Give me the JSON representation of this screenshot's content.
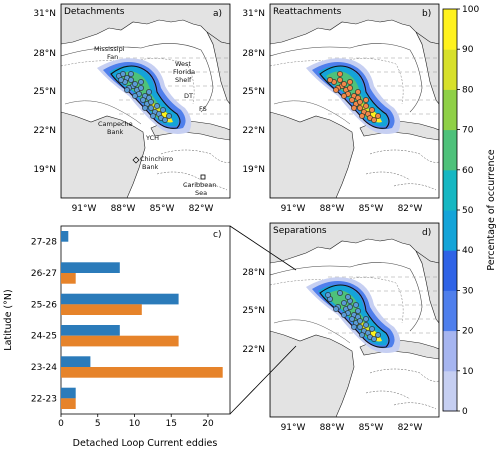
{
  "panels": {
    "a": {
      "title": "Detachments",
      "tag": "a)",
      "labels": {
        "mississippi_fan": [
          "Mississipi",
          "Fan"
        ],
        "west_florida_shelf": [
          "West",
          "Florida",
          "Shelf"
        ],
        "dt": "DT",
        "fs": "FS",
        "campeche_bank": [
          "Campeche",
          "Bank"
        ],
        "ych": "YCH",
        "chinchirro_bank": [
          "Chinchirro",
          "Bank"
        ],
        "caribbean_sea": [
          "Caribbean",
          "Sea"
        ]
      }
    },
    "b": {
      "title": "Reattachments",
      "tag": "b)"
    },
    "d": {
      "title": "Separations",
      "tag": "d)"
    },
    "c": {
      "tag": "c)"
    }
  },
  "map_axes": {
    "lat_ticks": [
      "31°N",
      "28°N",
      "25°N",
      "22°N",
      "19°N"
    ],
    "lat_ticks_short": [
      "28°N",
      "25°N",
      "22°N"
    ],
    "lon_ticks": [
      "91°W",
      "88°W",
      "85°W",
      "82°W"
    ]
  },
  "colorbar": {
    "label": "Percentage of occurrence",
    "ticks": [
      "0",
      "10",
      "20",
      "30",
      "40",
      "50",
      "60",
      "70",
      "80",
      "90",
      "100"
    ],
    "colors": [
      "#c6cff2",
      "#a6b5f0",
      "#4f7fec",
      "#2f63e6",
      "#14a4d8",
      "#16b7c2",
      "#4ec17a",
      "#8fd047",
      "#d7e02b",
      "#fff21e"
    ]
  },
  "chart_data": {
    "type": "bar",
    "orientation": "horizontal",
    "categories": [
      "27-28",
      "26-27",
      "25-26",
      "24-25",
      "23-24",
      "22-23"
    ],
    "series": [
      {
        "color": "#2b7bba",
        "values": [
          1,
          8,
          16,
          8,
          4,
          2
        ]
      },
      {
        "color": "#e6832a",
        "values": [
          0,
          2,
          11,
          16,
          22,
          2
        ]
      }
    ],
    "xlabel": "Detached Loop Current eddies",
    "ylabel": "Latitude (°N)",
    "xlim": [
      0,
      23
    ],
    "xticks": [
      "0",
      "5",
      "10",
      "15",
      "20"
    ]
  }
}
